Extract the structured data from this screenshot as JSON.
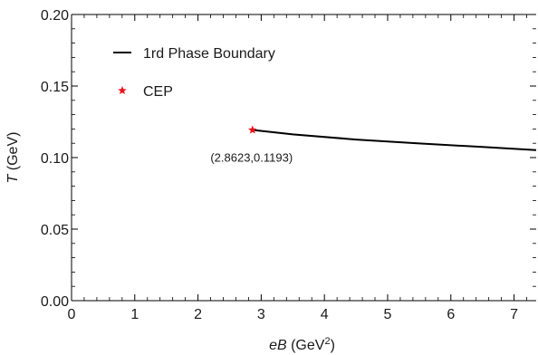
{
  "chart_data": {
    "type": "line",
    "xlabel": {
      "italic": "eB",
      "rest": " (GeV",
      "sup": "2",
      "close": ")"
    },
    "ylabel": {
      "italic": "T",
      "rest": " (GeV)"
    },
    "xlim": [
      0,
      7.35
    ],
    "ylim": [
      0,
      0.2
    ],
    "xticks": [
      "0",
      "1",
      "2",
      "3",
      "4",
      "5",
      "6",
      "7"
    ],
    "yticks": [
      "0.00",
      "0.05",
      "0.10",
      "0.15",
      "0.20"
    ],
    "grid": false,
    "legend_position": "top-left",
    "colors": {
      "line": "#000000",
      "cep": "#e8141c",
      "axis": "#000000"
    },
    "series": [
      {
        "name": "1rd Phase Boundary",
        "x": [
          2.8623,
          3.5,
          4.5,
          5.5,
          6.5,
          7.35
        ],
        "y": [
          0.1193,
          0.1162,
          0.1126,
          0.1099,
          0.1074,
          0.1052
        ]
      },
      {
        "name": "CEP",
        "marker": "star",
        "x": [
          2.8623
        ],
        "y": [
          0.1193
        ]
      }
    ],
    "annotations": [
      {
        "text": "(2.8623,0.1193)",
        "x": 2.8623,
        "y": 0.1193
      }
    ]
  }
}
